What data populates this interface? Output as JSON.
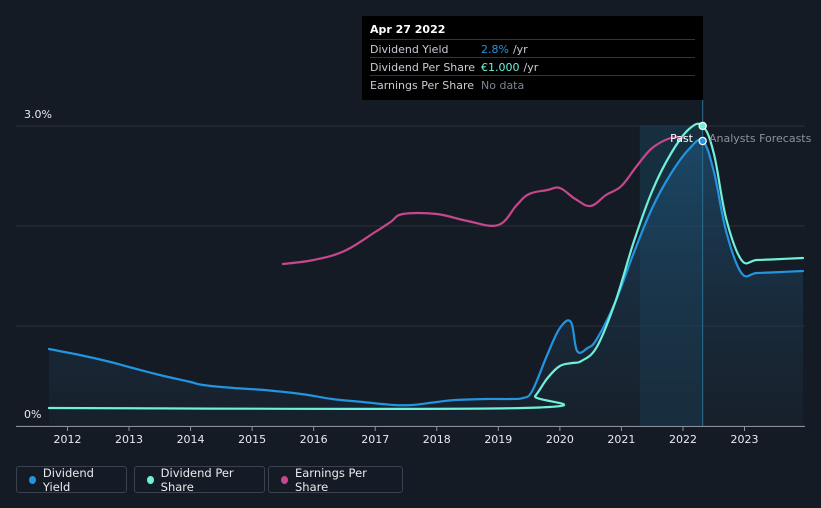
{
  "colors": {
    "background": "#151b24",
    "dividend_yield": "#2394df",
    "dividend_per_share": "#6ff0d9",
    "earnings_per_share": "#c5478e",
    "forecast_band": "#1b5574"
  },
  "tooltip": {
    "date": "Apr 27 2022",
    "rows": [
      {
        "label": "Dividend Yield",
        "value": "2.8%",
        "unit": "/yr",
        "color": "#2394df"
      },
      {
        "label": "Dividend Per Share",
        "value": "€1.000",
        "unit": "/yr",
        "color": "#6ff0d9"
      },
      {
        "label": "Earnings Per Share",
        "value": "No data",
        "unit": "",
        "color": "#7d8590"
      }
    ]
  },
  "legend": [
    {
      "label": "Dividend Yield",
      "color": "#2394df"
    },
    {
      "label": "Dividend Per Share",
      "color": "#6ff0d9"
    },
    {
      "label": "Earnings Per Share",
      "color": "#c5478e"
    }
  ],
  "chart_data": {
    "type": "line",
    "title": "",
    "xlabel": "",
    "ylabel": "",
    "xlim": [
      2011.7,
      2023.95
    ],
    "ylim": [
      0,
      3.0
    ],
    "y_tick_labels": [
      {
        "value": 3.0,
        "label": "3.0%"
      },
      {
        "value": 0,
        "label": "0%"
      }
    ],
    "gridlines": [
      0,
      1,
      2,
      3
    ],
    "x_ticks": [
      2012,
      2013,
      2014,
      2015,
      2016,
      2017,
      2018,
      2019,
      2020,
      2021,
      2022,
      2023
    ],
    "x_tick_labels": [
      "2012",
      "2013",
      "2014",
      "2015",
      "2016",
      "2017",
      "2018",
      "2019",
      "2020",
      "2021",
      "2022",
      "2023"
    ],
    "annotations": {
      "past": "Past",
      "forecast": "Analysts Forecasts"
    },
    "highlight_region": {
      "from": 2021.3,
      "to": 2022.32
    },
    "marker_x": 2022.32,
    "series": [
      {
        "name": "Dividend Yield",
        "color": "#2394df",
        "x": [
          2011.7,
          2012.2,
          2012.7,
          2013.0,
          2013.5,
          2014.0,
          2014.2,
          2014.7,
          2015.2,
          2015.8,
          2016.3,
          2016.8,
          2017.3,
          2017.6,
          2018.0,
          2018.3,
          2018.8,
          2019.2,
          2019.4,
          2019.55,
          2019.8,
          2020.0,
          2020.18,
          2020.28,
          2020.45,
          2020.6,
          2020.9,
          2021.2,
          2021.5,
          2021.8,
          2022.1,
          2022.32,
          2022.5,
          2022.7,
          2022.95,
          2023.2,
          2023.6,
          2023.95
        ],
        "y": [
          0.77,
          0.71,
          0.64,
          0.59,
          0.51,
          0.44,
          0.41,
          0.38,
          0.36,
          0.32,
          0.27,
          0.24,
          0.21,
          0.21,
          0.24,
          0.26,
          0.27,
          0.27,
          0.28,
          0.35,
          0.72,
          0.98,
          1.04,
          0.75,
          0.78,
          0.87,
          1.24,
          1.73,
          2.18,
          2.52,
          2.77,
          2.85,
          2.55,
          1.95,
          1.53,
          1.53,
          1.54,
          1.55
        ]
      },
      {
        "name": "Dividend Per Share",
        "color": "#6ff0d9",
        "x": [
          2011.7,
          2019.4,
          2019.6,
          2019.8,
          2020.0,
          2020.2,
          2020.35,
          2020.6,
          2020.9,
          2021.2,
          2021.5,
          2021.8,
          2022.1,
          2022.32,
          2022.5,
          2022.7,
          2022.95,
          2023.2,
          2023.6,
          2023.95
        ],
        "y": [
          0.18,
          0.18,
          0.3,
          0.48,
          0.6,
          0.63,
          0.65,
          0.79,
          1.24,
          1.84,
          2.35,
          2.72,
          2.97,
          3.0,
          2.73,
          2.08,
          1.66,
          1.66,
          1.67,
          1.68
        ]
      },
      {
        "name": "Earnings Per Share",
        "color": "#c5478e",
        "x": [
          2015.5,
          2016.0,
          2016.5,
          2017.0,
          2017.25,
          2017.45,
          2018.0,
          2018.5,
          2019.0,
          2019.3,
          2019.5,
          2019.8,
          2020.0,
          2020.25,
          2020.5,
          2020.75,
          2021.0,
          2021.25,
          2021.5,
          2021.8,
          2022.0
        ],
        "y": [
          1.62,
          1.66,
          1.75,
          1.94,
          2.04,
          2.12,
          2.12,
          2.05,
          2.01,
          2.21,
          2.32,
          2.36,
          2.38,
          2.27,
          2.2,
          2.31,
          2.4,
          2.6,
          2.78,
          2.88,
          2.88
        ]
      }
    ]
  }
}
